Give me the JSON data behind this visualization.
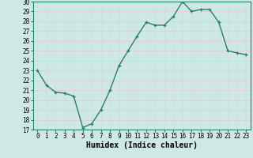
{
  "x": [
    0,
    1,
    2,
    3,
    4,
    5,
    6,
    7,
    8,
    9,
    10,
    11,
    12,
    13,
    14,
    15,
    16,
    17,
    18,
    19,
    20,
    21,
    22,
    23
  ],
  "y": [
    23,
    21.5,
    20.8,
    20.7,
    20.4,
    17.2,
    17.6,
    19.0,
    21.0,
    23.5,
    25.0,
    26.5,
    27.9,
    27.6,
    27.6,
    28.5,
    30.0,
    29.0,
    29.2,
    29.2,
    27.9,
    25.0,
    24.8,
    24.6
  ],
  "line_color": "#2d7d6e",
  "marker": "P",
  "marker_color": "#2d7d6e",
  "bg_color": "#cde8e5",
  "grid_color": "#b0d4d0",
  "xlabel": "Humidex (Indice chaleur)",
  "ylim": [
    17,
    30
  ],
  "xlim": [
    -0.5,
    23.5
  ],
  "yticks": [
    17,
    18,
    19,
    20,
    21,
    22,
    23,
    24,
    25,
    26,
    27,
    28,
    29,
    30
  ],
  "xticks": [
    0,
    1,
    2,
    3,
    4,
    5,
    6,
    7,
    8,
    9,
    10,
    11,
    12,
    13,
    14,
    15,
    16,
    17,
    18,
    19,
    20,
    21,
    22,
    23
  ],
  "tick_label_fontsize": 5.5,
  "xlabel_fontsize": 7.0,
  "line_width": 1.0,
  "marker_size": 3.0,
  "spine_color": "#2d7d6e"
}
